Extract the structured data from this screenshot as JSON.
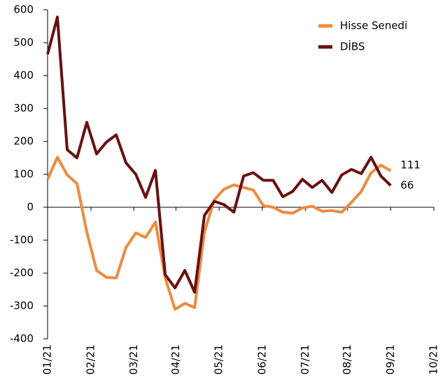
{
  "chart_data": {
    "type": "line",
    "x": [
      0,
      1,
      2,
      3,
      4,
      5,
      6,
      7,
      8,
      9,
      10,
      11,
      12,
      13,
      14,
      15,
      16,
      17,
      18,
      19,
      20,
      21,
      22,
      23,
      24,
      25,
      26,
      27,
      28,
      29,
      30,
      31,
      32,
      33,
      34,
      35
    ],
    "series": [
      {
        "name": "Hisse Senedi",
        "color": "#f08a3c",
        "values": [
          85,
          152,
          98,
          72,
          -75,
          -192,
          -213,
          -215,
          -122,
          -78,
          -92,
          -45,
          -215,
          -310,
          -292,
          -305,
          -75,
          22,
          55,
          68,
          60,
          52,
          5,
          0,
          -15,
          -18,
          -2,
          3,
          -12,
          -10,
          -15,
          15,
          48,
          105,
          128,
          111
        ]
      },
      {
        "name": "DİBS",
        "color": "#6b0f0f",
        "values": [
          465,
          578,
          175,
          150,
          258,
          162,
          198,
          220,
          135,
          100,
          30,
          112,
          -205,
          -245,
          -192,
          -258,
          -25,
          18,
          8,
          -15,
          95,
          105,
          82,
          82,
          32,
          48,
          85,
          60,
          82,
          45,
          98,
          115,
          102,
          152,
          95,
          66
        ]
      }
    ],
    "xlim": [
      0,
      39.4
    ],
    "xticks": [
      {
        "value": 0,
        "label": "01/21"
      },
      {
        "value": 4.43,
        "label": "02/21"
      },
      {
        "value": 8.8,
        "label": "03/21"
      },
      {
        "value": 13.1,
        "label": "04/21"
      },
      {
        "value": 17.5,
        "label": "05/21"
      },
      {
        "value": 21.9,
        "label": "06/21"
      },
      {
        "value": 26.3,
        "label": "07/21"
      },
      {
        "value": 30.6,
        "label": "08/21"
      },
      {
        "value": 35,
        "label": "09/21"
      },
      {
        "value": 39.4,
        "label": "10/21"
      }
    ],
    "ylim": [
      -400,
      600
    ],
    "yticks": [
      -400,
      -300,
      -200,
      -100,
      0,
      100,
      200,
      300,
      400,
      500,
      600
    ],
    "legend": "upper right"
  }
}
